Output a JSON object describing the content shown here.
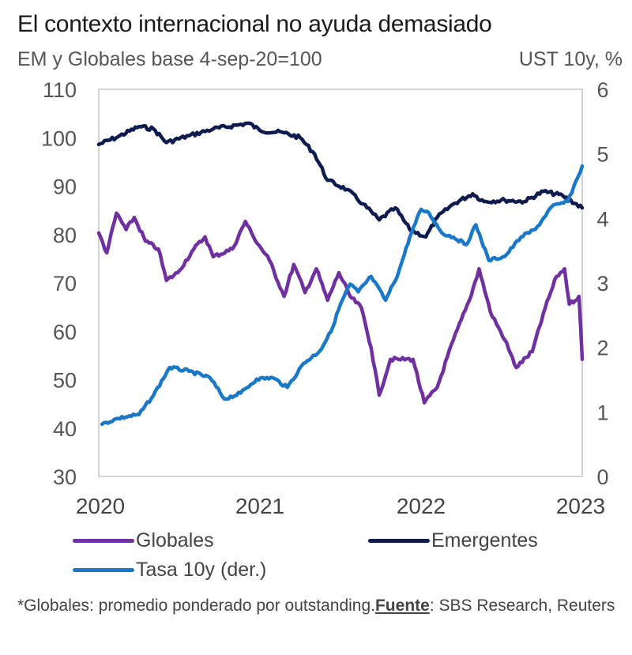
{
  "header": {
    "title": "El contexto internacional no ayuda demasiado",
    "subtitle_left": "EM y Globales base 4-sep-20=100",
    "subtitle_right": "UST 10y, %"
  },
  "legend": [
    {
      "label": "Globales",
      "color": "#7030a0"
    },
    {
      "label": "Emergentes",
      "color": "#0d1b4f"
    },
    {
      "label": "Tasa 10y (der.)",
      "color": "#1a78c8"
    }
  ],
  "footnote": {
    "prefix": "*Globales: promedio ponderado por outstanding.",
    "source_label": "Fuente",
    "suffix": ": SBS Research, Reuters"
  },
  "chart_data": {
    "type": "line",
    "title": "El contexto internacional no ayuda demasiado",
    "ylabel_left": "EM y Globales base 4-sep-20=100",
    "ylabel_right": "UST 10y, %",
    "xlabel": "",
    "x_ticks": [
      "2020",
      "2021",
      "2022",
      "2023"
    ],
    "x_range": [
      2020.0,
      2023.0
    ],
    "y_left_range": [
      30,
      110
    ],
    "y_left_ticks": [
      30,
      40,
      50,
      60,
      70,
      80,
      90,
      100,
      110
    ],
    "y_right_range": [
      0,
      6
    ],
    "y_right_ticks": [
      0,
      1,
      2,
      3,
      4,
      5,
      6
    ],
    "grid": false,
    "legend_position": "bottom",
    "series": [
      {
        "name": "Globales",
        "axis": "left",
        "color": "#7030a0",
        "x": [
          2020.0,
          2020.05,
          2020.11,
          2020.17,
          2020.22,
          2020.29,
          2020.37,
          2020.42,
          2020.49,
          2020.59,
          2020.66,
          2020.71,
          2020.83,
          2020.91,
          2020.96,
          2021.06,
          2021.15,
          2021.21,
          2021.28,
          2021.35,
          2021.42,
          2021.49,
          2021.56,
          2021.63,
          2021.69,
          2021.74,
          2021.81,
          2021.86,
          2021.95,
          2022.02,
          2022.1,
          2022.2,
          2022.3,
          2022.36,
          2022.43,
          2022.52,
          2022.59,
          2022.69,
          2022.77,
          2022.84,
          2022.89,
          2022.92,
          2022.98,
          2023.0
        ],
        "values": [
          80.3,
          76.2,
          84.4,
          81,
          83.5,
          78.6,
          77,
          70.5,
          72.1,
          77,
          79.5,
          75.4,
          77,
          82.7,
          79.5,
          74.6,
          67.2,
          73.8,
          68,
          72.9,
          66.4,
          72.1,
          67.2,
          64.8,
          56.6,
          46.8,
          54.2,
          54.2,
          54.2,
          45.2,
          48.4,
          58.2,
          66.4,
          72.9,
          64,
          58.2,
          52.5,
          55.8,
          64.8,
          71.3,
          72.9,
          65.6,
          67.2,
          54.2
        ]
      },
      {
        "name": "Emergentes",
        "axis": "left",
        "color": "#0d1b4f",
        "x": [
          2020.0,
          2020.12,
          2020.25,
          2020.34,
          2020.42,
          2020.56,
          2020.71,
          2020.86,
          2020.93,
          2021.0,
          2021.15,
          2021.25,
          2021.34,
          2021.42,
          2021.54,
          2021.64,
          2021.74,
          2021.84,
          2021.93,
          2022.03,
          2022.1,
          2022.2,
          2022.32,
          2022.39,
          2022.52,
          2022.64,
          2022.76,
          2022.88,
          2023.0
        ],
        "values": [
          98.6,
          100.2,
          102.3,
          101.8,
          99,
          100.4,
          101.8,
          102.6,
          103,
          101.5,
          101,
          100,
          96.6,
          91.2,
          89.3,
          86.3,
          83,
          85.5,
          81,
          79.5,
          83.5,
          86.3,
          88.4,
          86.8,
          87.1,
          86.8,
          88.9,
          88,
          85.5
        ]
      },
      {
        "name": "Tasa 10y (der.)",
        "axis": "right",
        "color": "#1a78c8",
        "x": [
          2020.02,
          2020.12,
          2020.25,
          2020.34,
          2020.44,
          2020.56,
          2020.69,
          2020.78,
          2020.88,
          2020.98,
          2021.08,
          2021.17,
          2021.27,
          2021.37,
          2021.44,
          2021.5,
          2021.56,
          2021.61,
          2021.69,
          2021.78,
          2021.86,
          2021.93,
          2022.0,
          2022.05,
          2022.13,
          2022.2,
          2022.28,
          2022.34,
          2022.42,
          2022.52,
          2022.62,
          2022.71,
          2022.81,
          2022.91,
          2023.0
        ],
        "values": [
          0.81,
          0.9,
          0.96,
          1.26,
          1.69,
          1.63,
          1.53,
          1.2,
          1.29,
          1.51,
          1.53,
          1.38,
          1.75,
          1.94,
          2.24,
          2.67,
          2.98,
          2.86,
          3.1,
          2.73,
          3.16,
          3.71,
          4.14,
          4.08,
          3.77,
          3.71,
          3.59,
          3.9,
          3.35,
          3.41,
          3.71,
          3.83,
          4.18,
          4.26,
          4.81
        ]
      }
    ]
  }
}
